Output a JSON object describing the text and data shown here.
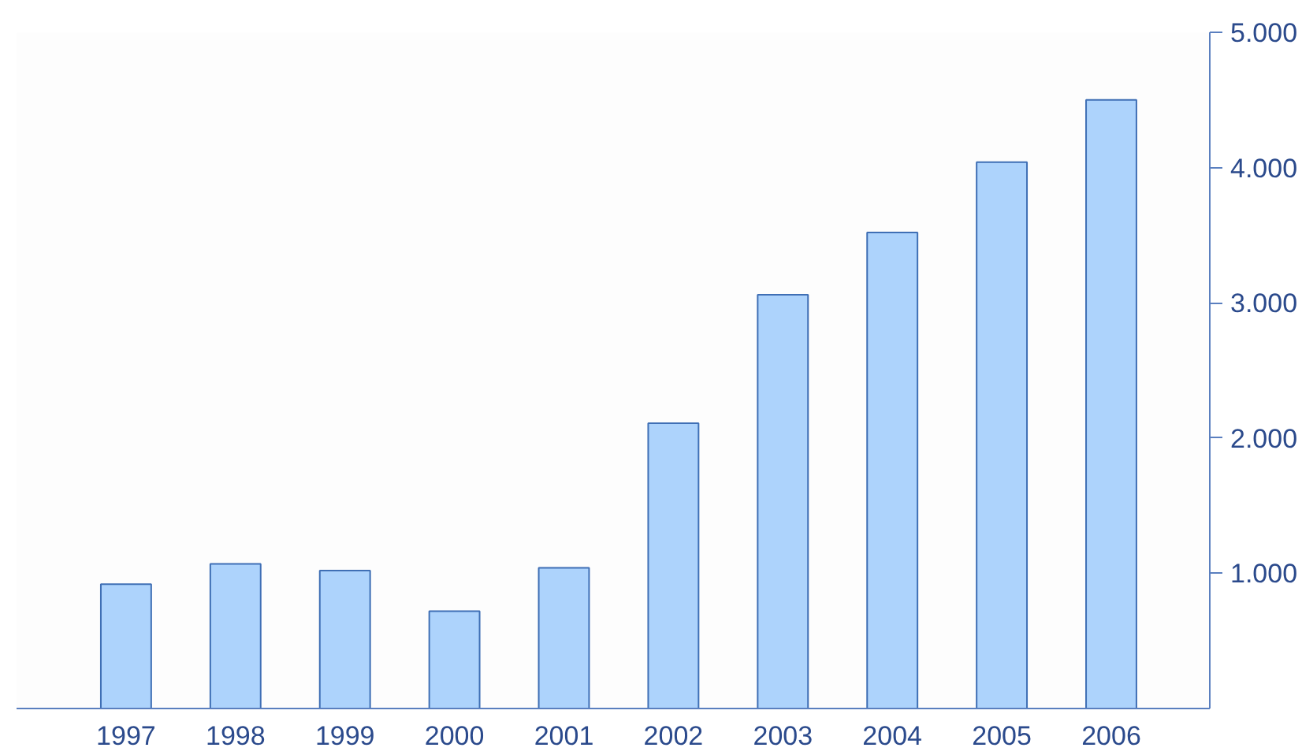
{
  "chart_data": {
    "type": "bar",
    "categories": [
      "1997",
      "1998",
      "1999",
      "2000",
      "2001",
      "2002",
      "2003",
      "2004",
      "2005",
      "2006"
    ],
    "values": [
      920,
      1070,
      1020,
      720,
      1040,
      2110,
      3060,
      3520,
      4040,
      4500
    ],
    "color": "#add3fc",
    "ylim": [
      0,
      5000
    ],
    "yticks": [
      {
        "value": 1000,
        "label": "1.000"
      },
      {
        "value": 2000,
        "label": "2.000"
      },
      {
        "value": 3000,
        "label": "3.000"
      },
      {
        "value": 4000,
        "label": "4.000"
      },
      {
        "value": 5000,
        "label": "5.000"
      }
    ],
    "grid": false
  }
}
